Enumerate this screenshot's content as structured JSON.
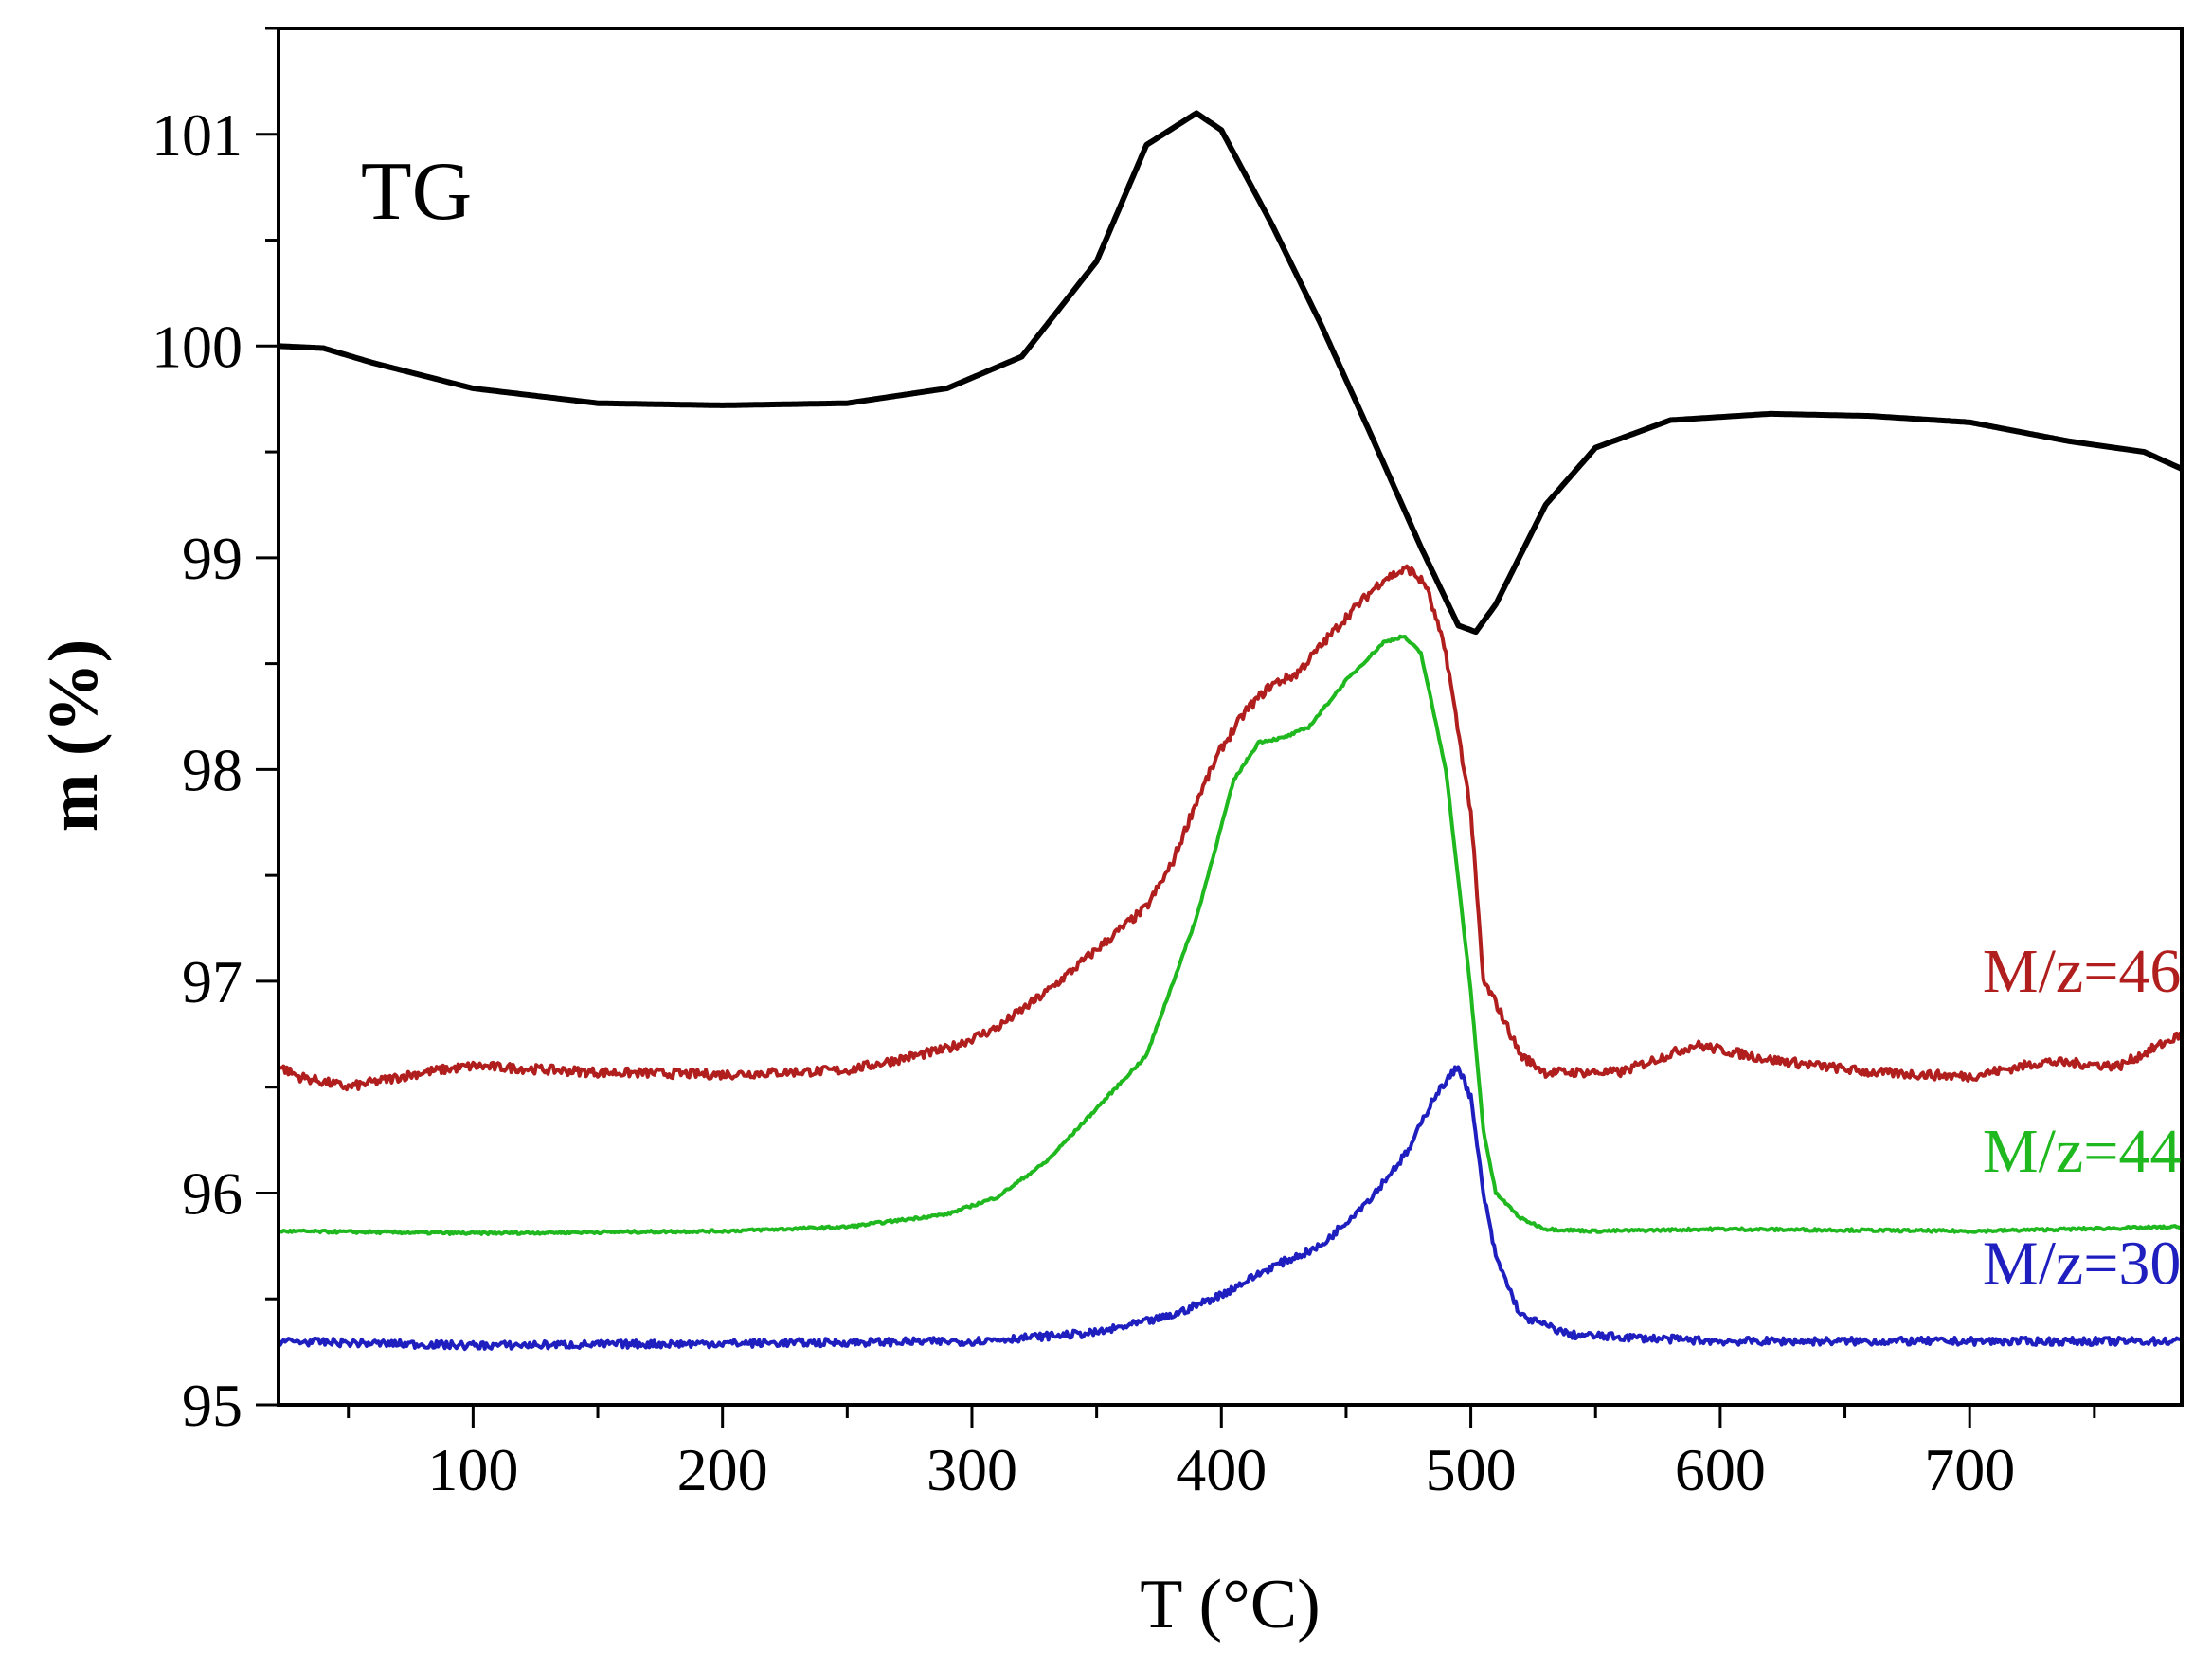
{
  "chart_data": {
    "type": "line",
    "xlabel": "T (°C)",
    "ylabel": "m (%)",
    "xlim": [
      22,
      785
    ],
    "ylim": [
      95,
      101.5
    ],
    "x_ticks": [
      100,
      200,
      300,
      400,
      500,
      600,
      700
    ],
    "y_ticks": [
      95,
      96,
      97,
      98,
      99,
      100,
      101
    ],
    "grid": false,
    "series": [
      {
        "name": "TG",
        "color": "#000000",
        "noise": 0,
        "x": [
          22,
          40,
          60,
          100,
          150,
          200,
          250,
          290,
          320,
          350,
          370,
          390,
          400,
          420,
          440,
          460,
          480,
          495,
          502,
          510,
          530,
          550,
          580,
          620,
          660,
          700,
          740,
          770,
          785
        ],
        "y": [
          100.0,
          99.99,
          99.92,
          99.8,
          99.73,
          99.72,
          99.73,
          99.8,
          99.95,
          100.4,
          100.95,
          101.1,
          101.02,
          100.58,
          100.1,
          99.58,
          99.05,
          98.68,
          98.65,
          98.78,
          99.25,
          99.52,
          99.65,
          99.68,
          99.67,
          99.64,
          99.55,
          99.5,
          99.42
        ]
      },
      {
        "name": "M/z=46",
        "color": "#b01e1e",
        "noise": 0.022,
        "x": [
          22,
          30,
          50,
          80,
          100,
          150,
          200,
          250,
          290,
          310,
          330,
          350,
          370,
          380,
          390,
          400,
          410,
          420,
          430,
          450,
          465,
          475,
          482,
          490,
          500,
          505,
          510,
          520,
          530,
          560,
          590,
          620,
          660,
          700,
          730,
          760,
          785
        ],
        "y": [
          96.6,
          96.55,
          96.5,
          96.57,
          96.6,
          96.57,
          96.56,
          96.58,
          96.68,
          96.78,
          96.95,
          97.15,
          97.35,
          97.55,
          97.85,
          98.1,
          98.28,
          98.4,
          98.45,
          98.72,
          98.9,
          98.95,
          98.87,
          98.55,
          97.8,
          97.0,
          96.9,
          96.65,
          96.57,
          96.57,
          96.7,
          96.63,
          96.57,
          96.55,
          96.62,
          96.6,
          96.75
        ]
      },
      {
        "name": "M/z=44",
        "color": "#1fb81f",
        "noise": 0.006,
        "x": [
          22,
          100,
          200,
          250,
          290,
          310,
          330,
          350,
          370,
          390,
          405,
          415,
          425,
          435,
          450,
          465,
          473,
          480,
          490,
          500,
          505,
          510,
          520,
          530,
          550,
          600,
          700,
          785
        ],
        "y": [
          95.82,
          95.81,
          95.82,
          95.84,
          95.9,
          95.98,
          96.15,
          96.4,
          96.65,
          97.3,
          97.95,
          98.13,
          98.15,
          98.2,
          98.42,
          98.6,
          98.63,
          98.55,
          98.0,
          96.95,
          96.3,
          96.0,
          95.88,
          95.83,
          95.82,
          95.83,
          95.82,
          95.84
        ]
      },
      {
        "name": "M/z=30",
        "color": "#1f1fc0",
        "noise": 0.018,
        "x": [
          22,
          100,
          200,
          300,
          350,
          380,
          400,
          420,
          440,
          460,
          475,
          485,
          495,
          500,
          505,
          510,
          520,
          540,
          600,
          700,
          785
        ],
        "y": [
          95.3,
          95.28,
          95.29,
          95.3,
          95.34,
          95.42,
          95.52,
          95.65,
          95.75,
          95.98,
          96.2,
          96.45,
          96.6,
          96.45,
          96.0,
          95.7,
          95.42,
          95.33,
          95.3,
          95.3,
          95.3
        ]
      }
    ],
    "annotations": [
      {
        "text": "TG",
        "x": 55,
        "y": 100.6
      },
      {
        "text": "M/z=46",
        "x": 745,
        "y": 96.95
      },
      {
        "text": "M/z=44",
        "x": 745,
        "y": 96.1
      },
      {
        "text": "M/z=30",
        "x": 745,
        "y": 95.57
      }
    ]
  }
}
